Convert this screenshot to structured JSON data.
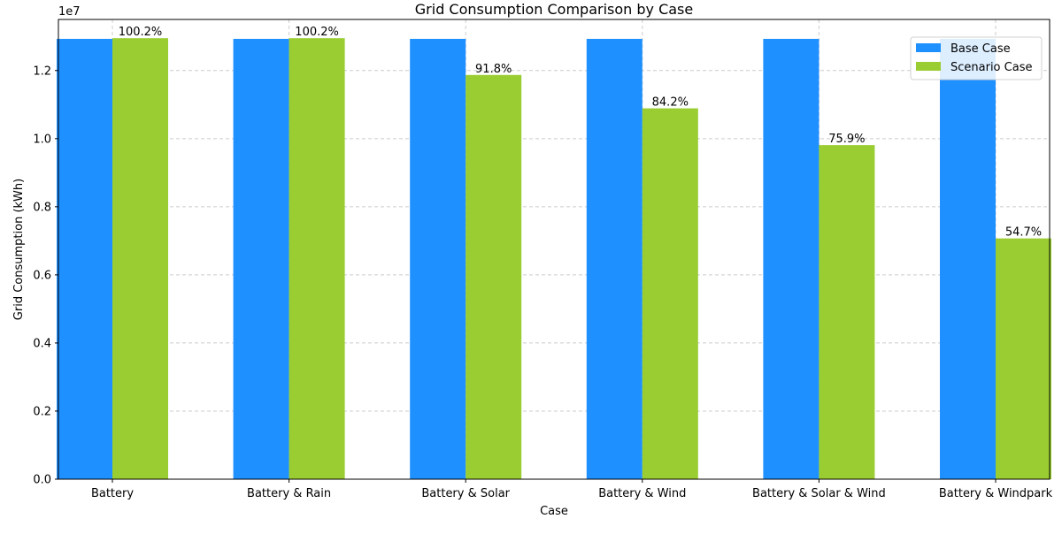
{
  "chart_data": {
    "type": "bar",
    "title": "Grid Consumption Comparison by Case",
    "xlabel": "Case",
    "ylabel": "Grid Consumption (kWh)",
    "y_offset_label": "1e7",
    "ylim": [
      0,
      13500000
    ],
    "yticks": [
      0,
      2000000,
      4000000,
      6000000,
      8000000,
      10000000,
      12000000
    ],
    "ytick_labels": [
      "0.0",
      "0.2",
      "0.4",
      "0.6",
      "0.8",
      "1.0",
      "1.2"
    ],
    "grid": true,
    "legend_position": "top-right",
    "categories": [
      "Battery",
      "Battery & Rain",
      "Battery & Solar",
      "Battery & Wind",
      "Battery & Solar & Wind",
      "Battery & Windpark"
    ],
    "series": [
      {
        "name": "Base Case",
        "color": "#1e90ff",
        "values": [
          12930000,
          12930000,
          12930000,
          12930000,
          12930000,
          12930000
        ]
      },
      {
        "name": "Scenario Case",
        "color": "#9acd32",
        "values": [
          12950000,
          12950000,
          11870000,
          10890000,
          9810000,
          7070000
        ],
        "data_labels": [
          "100.2%",
          "100.2%",
          "91.8%",
          "84.2%",
          "75.9%",
          "54.7%"
        ]
      }
    ]
  }
}
